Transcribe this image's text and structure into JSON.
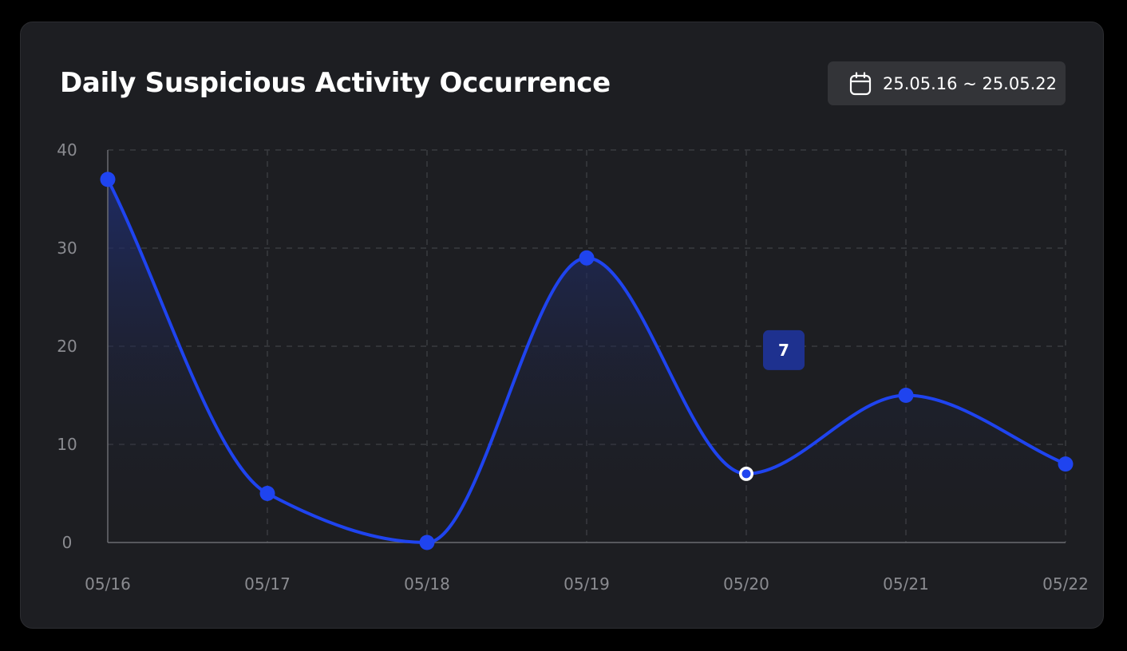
{
  "header": {
    "title": "Daily Suspicious Activity Occurrence",
    "date_range": "25.05.16 ~ 25.05.22",
    "date_icon": "calendar-icon"
  },
  "colors": {
    "line": "#1f44ef",
    "tooltip_bg": "#1e318f",
    "grid": "#3a3b40",
    "axis": "#6b6c71"
  },
  "chart_data": {
    "type": "line",
    "categories": [
      "05/16",
      "05/17",
      "05/18",
      "05/19",
      "05/20",
      "05/21",
      "05/22"
    ],
    "values": [
      37,
      5,
      0,
      29,
      7,
      15,
      8
    ],
    "ylim": [
      0,
      40
    ],
    "yticks": [
      0,
      10,
      20,
      30,
      40
    ],
    "grid": true,
    "smooth": true,
    "area_fill": true,
    "highlight_index": 4,
    "tooltip": "7"
  }
}
